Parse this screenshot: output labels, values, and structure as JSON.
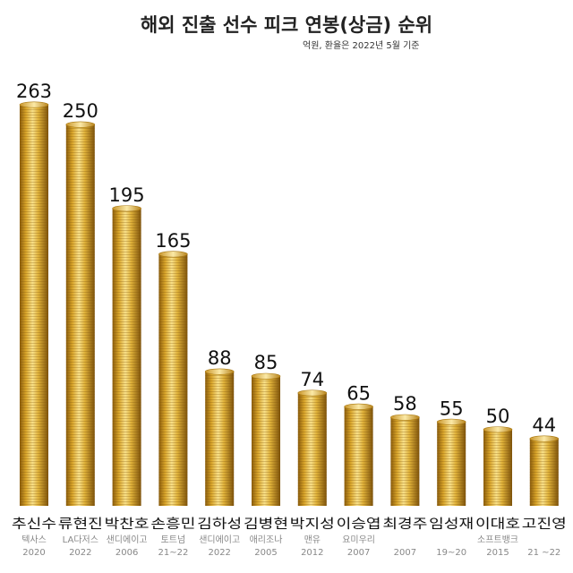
{
  "header": {
    "title": "해외 진출 선수 피크 연봉(상금) 순위",
    "subtitle": "억원, 환율은 2022년 5월 기준"
  },
  "colors": {
    "coin_light": "#f6dc78",
    "coin_mid": "#d9a52a",
    "coin_dark": "#9a6a10",
    "label_text": "#111111",
    "sub_text": "#888888"
  },
  "chart_data": {
    "type": "bar",
    "title": "해외 진출 선수 피크 연봉(상금) 순위",
    "subtitle": "억원, 환율은 2022년 5월 기준",
    "ylim": [
      0,
      263
    ],
    "grid": false,
    "legend": "none",
    "categories": [
      "추신수",
      "류현진",
      "박찬호",
      "손흥민",
      "김하성",
      "김병현",
      "박지성",
      "이승엽",
      "최경주",
      "임성재",
      "이대호",
      "고진영"
    ],
    "teams": [
      "텍사스",
      "LA다저스",
      "샌디에이고",
      "토트넘",
      "샌디에이고",
      "애리조나",
      "맨유",
      "요미우리",
      "",
      "",
      "소프트뱅크",
      ""
    ],
    "years": [
      "2020",
      "2022",
      "2006",
      "21~22",
      "2022",
      "2005",
      "2012",
      "2007",
      "2007",
      "19~20",
      "2015",
      "21 ~22"
    ],
    "values": [
      263,
      250,
      195,
      165,
      88,
      85,
      74,
      65,
      58,
      55,
      50,
      44
    ]
  }
}
